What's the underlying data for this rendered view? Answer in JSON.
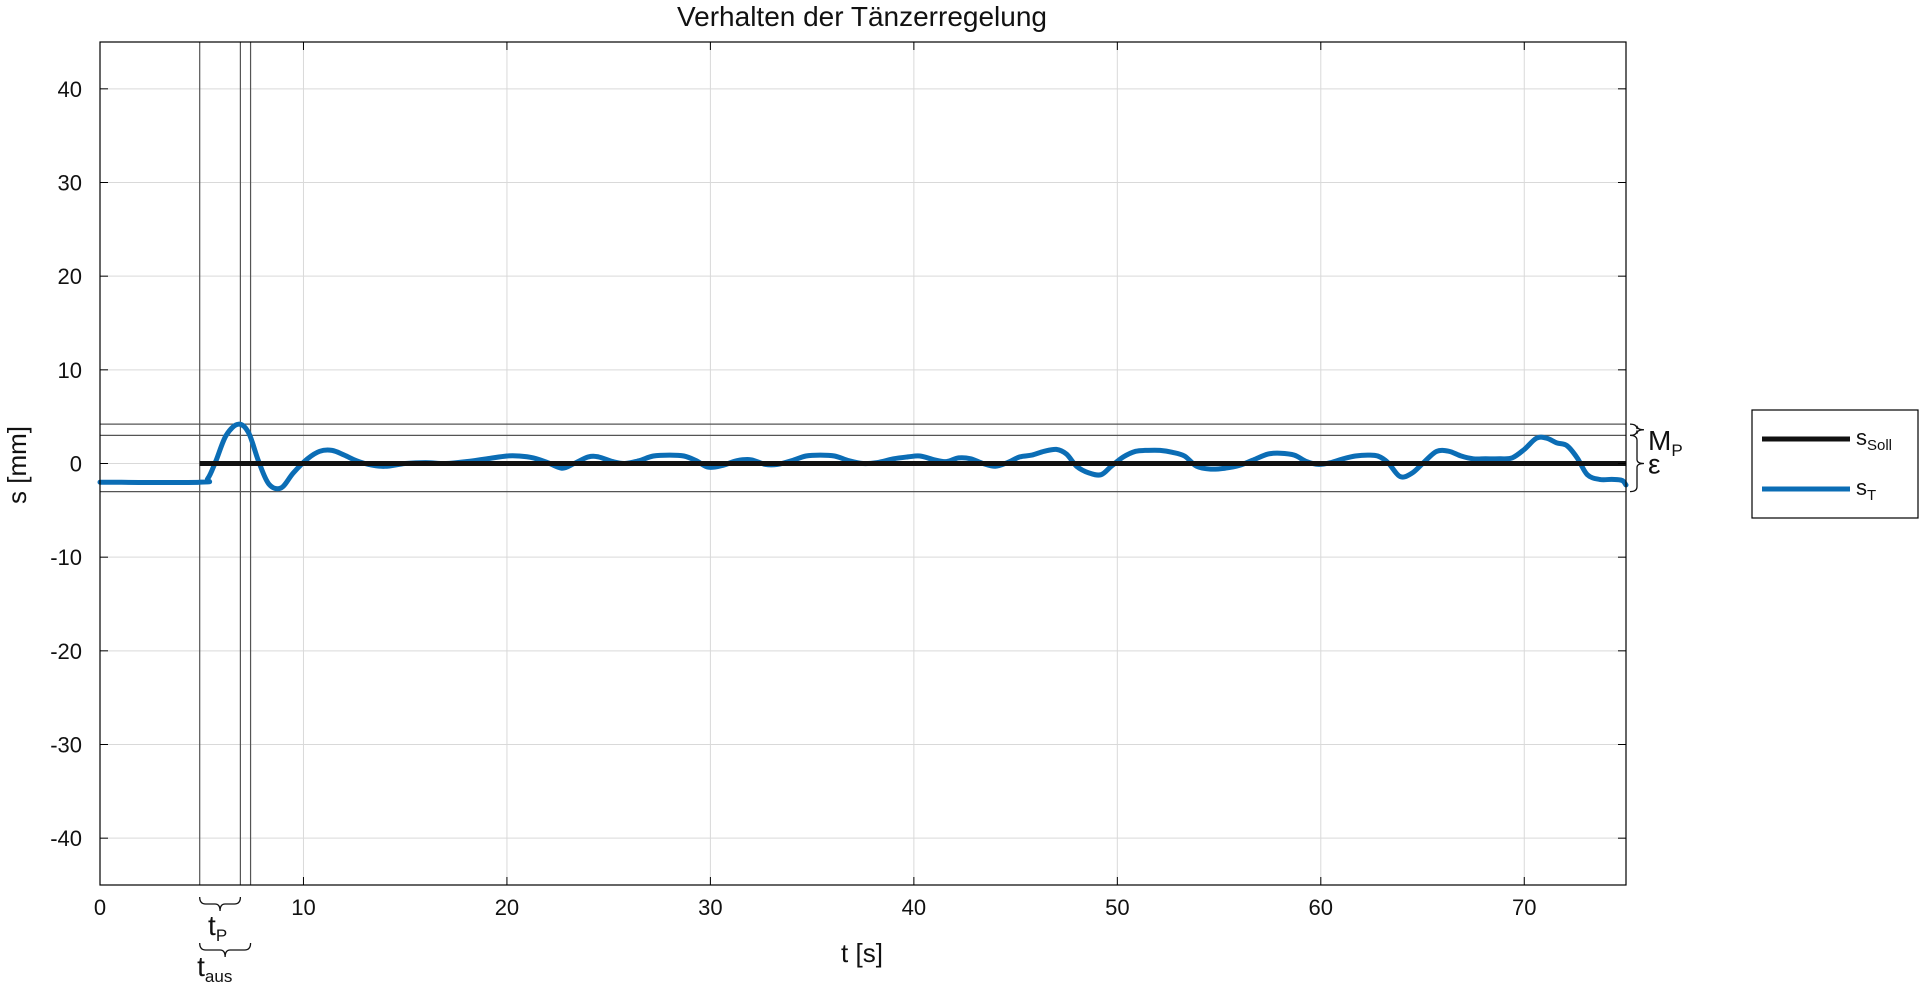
{
  "chart_data": {
    "type": "line",
    "title": "Verhalten der Tänzerregelung",
    "xlabel": "t [s]",
    "ylabel": "s [mm]",
    "xlim": [
      0,
      75
    ],
    "ylim": [
      -45,
      45
    ],
    "xticks": [
      0,
      10,
      20,
      30,
      40,
      50,
      60,
      70
    ],
    "yticks": [
      40,
      30,
      20,
      10,
      0,
      -10,
      -20,
      -30,
      -40
    ],
    "xtick_labels": [
      "0",
      "10",
      "20",
      "30",
      "40",
      "50",
      "60",
      "70"
    ],
    "ytick_labels": [
      "40",
      "30",
      "20",
      "10",
      "0",
      "-10",
      "-20",
      "-30",
      "-40"
    ],
    "grid": true,
    "legend": {
      "placement": "outside-right"
    },
    "series": [
      {
        "name": "s",
        "name_sub": "Soll",
        "color": "#111111",
        "x": [
          4.9,
          75
        ],
        "y": [
          0,
          0
        ]
      },
      {
        "name": "s",
        "name_sub": "T",
        "color": "#0B6DB5",
        "x": [
          0,
          4.9,
          5.3,
          5.7,
          6.2,
          6.8,
          7.3,
          7.8,
          8.3,
          8.9,
          9.5,
          10.2,
          10.8,
          11.4,
          12.0,
          12.6,
          13.2,
          14.0,
          15.0,
          16.0,
          17.0,
          18.0,
          19.0,
          20.0,
          20.6,
          21.3,
          22.0,
          22.7,
          23.3,
          24.0,
          24.5,
          25.2,
          25.8,
          26.5,
          27.2,
          28.0,
          28.7,
          29.3,
          29.9,
          30.6,
          31.3,
          32.0,
          32.7,
          33.3,
          34.0,
          34.7,
          35.4,
          36.1,
          36.8,
          37.5,
          38.2,
          39.0,
          39.7,
          40.3,
          41.0,
          41.6,
          42.2,
          42.8,
          43.4,
          44.0,
          44.6,
          45.2,
          45.8,
          46.4,
          47.0,
          47.5,
          48.0,
          48.6,
          49.2,
          49.7,
          50.3,
          50.9,
          51.5,
          52.1,
          52.7,
          53.3,
          53.9,
          54.6,
          55.3,
          56.0,
          56.7,
          57.4,
          58.0,
          58.7,
          59.3,
          59.9,
          60.5,
          61.1,
          61.7,
          62.3,
          62.8,
          63.3,
          63.9,
          64.5,
          65.1,
          65.7,
          66.3,
          66.9,
          67.5,
          68.1,
          68.8,
          69.4,
          70.0,
          70.6,
          71.1,
          71.6,
          72.1,
          72.6,
          73.1,
          73.7,
          74.3,
          74.8,
          75.0
        ],
        "y": [
          -2,
          -2,
          -1.6,
          0.3,
          3.0,
          4.2,
          3.3,
          0.2,
          -2.2,
          -2.6,
          -1.0,
          0.5,
          1.3,
          1.4,
          0.9,
          0.3,
          -0.1,
          -0.3,
          0.0,
          0.1,
          0.0,
          0.2,
          0.5,
          0.8,
          0.8,
          0.6,
          0.1,
          -0.5,
          0.0,
          0.7,
          0.7,
          0.2,
          0.0,
          0.3,
          0.8,
          0.9,
          0.8,
          0.3,
          -0.4,
          -0.2,
          0.3,
          0.4,
          -0.1,
          -0.1,
          0.3,
          0.8,
          0.9,
          0.8,
          0.3,
          0.0,
          0.1,
          0.5,
          0.7,
          0.8,
          0.4,
          0.2,
          0.6,
          0.5,
          0.0,
          -0.3,
          0.1,
          0.7,
          0.9,
          1.3,
          1.5,
          1.0,
          -0.3,
          -1.0,
          -1.2,
          -0.3,
          0.7,
          1.3,
          1.4,
          1.4,
          1.2,
          0.8,
          -0.3,
          -0.6,
          -0.5,
          -0.2,
          0.4,
          1.0,
          1.1,
          0.9,
          0.2,
          -0.1,
          0.1,
          0.5,
          0.8,
          0.9,
          0.8,
          0.1,
          -1.4,
          -1.0,
          0.2,
          1.3,
          1.3,
          0.8,
          0.5,
          0.5,
          0.5,
          0.6,
          1.5,
          2.7,
          2.7,
          2.2,
          1.9,
          0.6,
          -1.2,
          -1.7,
          -1.7,
          -1.8,
          -2.3
        ]
      }
    ],
    "reference_lines": {
      "horizontal": [
        4.2,
        3.0,
        -3.0
      ],
      "vertical": [
        4.9,
        6.9,
        7.4
      ]
    },
    "annotations": {
      "tp": {
        "main": "t",
        "sub": "P"
      },
      "taus": {
        "main": "t",
        "sub": "aus"
      },
      "mp": {
        "main": "M",
        "sub": "P"
      },
      "eps": "ε"
    },
    "colors": {
      "soll": "#111111",
      "ist": "#0B6DB5",
      "grid": "#d9d9d9",
      "ref_lines": "#555555",
      "axes": "#000000"
    }
  }
}
